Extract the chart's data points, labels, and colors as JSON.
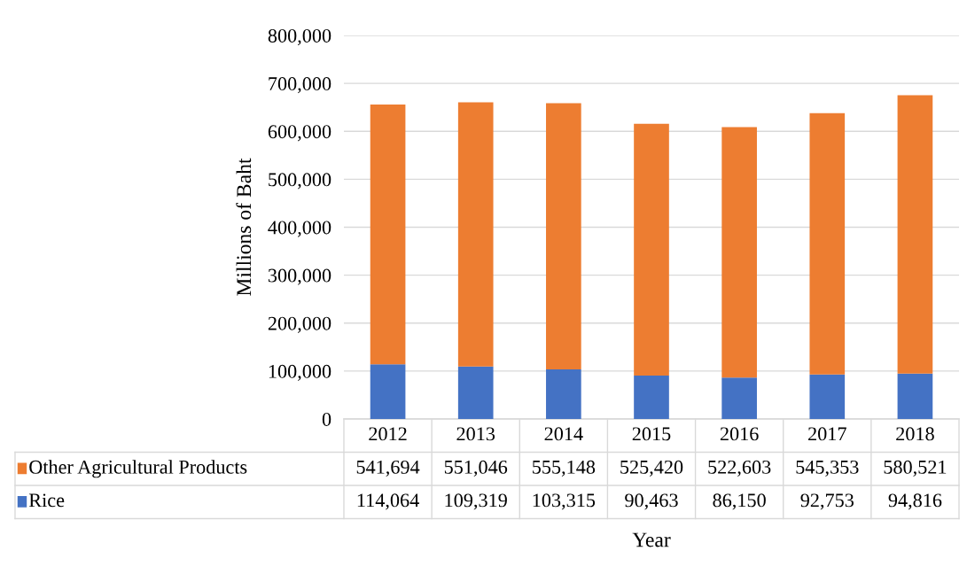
{
  "chart_data": {
    "type": "bar",
    "stacked": true,
    "ylabel": "Millions of Baht",
    "xlabel": "Year",
    "categories": [
      "2012",
      "2013",
      "2014",
      "2015",
      "2016",
      "2017",
      "2018"
    ],
    "series": [
      {
        "name": "Rice",
        "color": "#4472c4",
        "values": [
          114064,
          109319,
          103315,
          90463,
          86150,
          92753,
          94816
        ],
        "value_labels": [
          "114,064",
          "109,319",
          "103,315",
          "90,463",
          "86,150",
          "92,753",
          "94,816"
        ]
      },
      {
        "name": "Other Agricultural Products",
        "color": "#ed7d31",
        "values": [
          541694,
          551046,
          555148,
          525420,
          522603,
          545353,
          580521
        ],
        "value_labels": [
          "541,694",
          "551,046",
          "555,148",
          "525,420",
          "522,603",
          "545,353",
          "580,521"
        ]
      }
    ],
    "ylim": [
      0,
      800000
    ],
    "yticks": [
      {
        "value": 0,
        "label": "0"
      },
      {
        "value": 100000,
        "label": "100,000"
      },
      {
        "value": 200000,
        "label": "200,000"
      },
      {
        "value": 300000,
        "label": "300,000"
      },
      {
        "value": 400000,
        "label": "400,000"
      },
      {
        "value": 500000,
        "label": "500,000"
      },
      {
        "value": 600000,
        "label": "600,000"
      },
      {
        "value": 700000,
        "label": "700,000"
      },
      {
        "value": 800000,
        "label": "800,000"
      }
    ],
    "grid": "y",
    "legend": "bottom"
  }
}
